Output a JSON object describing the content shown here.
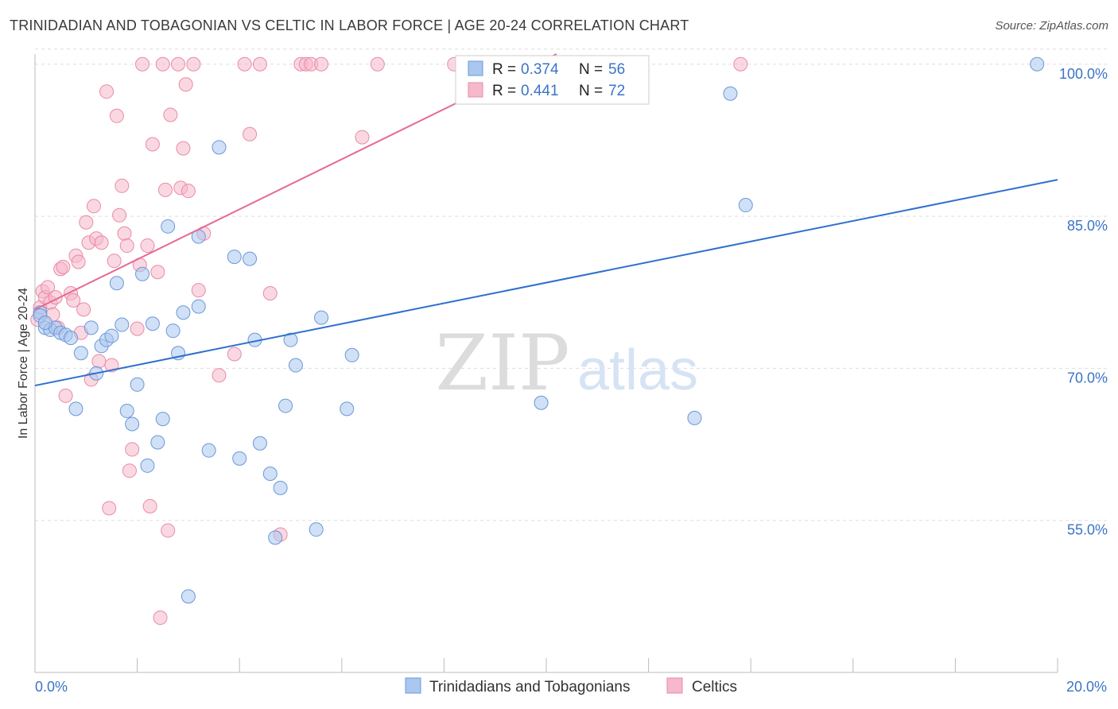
{
  "header": {
    "title": "TRINIDADIAN AND TOBAGONIAN VS CELTIC IN LABOR FORCE | AGE 20-24 CORRELATION CHART",
    "source": "Source: ZipAtlas.com"
  },
  "watermark": {
    "zip": "ZIP",
    "atlas": "atlas"
  },
  "legend_box": {
    "rows": [
      {
        "r_label": "R = ",
        "r_value": "0.374",
        "n_label": "N = ",
        "n_value": "56"
      },
      {
        "r_label": "R = ",
        "r_value": "0.441",
        "n_label": "N = ",
        "n_value": "72"
      }
    ]
  },
  "colors": {
    "series1_fill": "#a9c7ef",
    "series1_stroke": "#6b98d8",
    "series1_line": "#2f6fcf",
    "series2_fill": "#f6b8cb",
    "series2_stroke": "#e98aa8",
    "series2_line": "#e56a95",
    "grid": "#dddddd",
    "tick_label": "#3b73c8"
  },
  "chart_data": {
    "type": "scatter",
    "title": "TRINIDADIAN AND TOBAGONIAN VS CELTIC IN LABOR FORCE | AGE 20-24 CORRELATION CHART",
    "xlabel": "",
    "ylabel": "In Labor Force | Age 20-24",
    "xlim": [
      0,
      20
    ],
    "ylim": [
      40,
      101
    ],
    "x_tick_labels": [
      "0.0%",
      "20.0%"
    ],
    "y_ticks": [
      55,
      70,
      85,
      100
    ],
    "y_tick_labels": [
      "55.0%",
      "70.0%",
      "85.0%",
      "100.0%"
    ],
    "grid": true,
    "legend_position": "top-center",
    "series": [
      {
        "name": "Trinidadians and Tobagonians",
        "r": 0.374,
        "n": 56,
        "trend": {
          "x0": 0,
          "y0": 68.3,
          "x1": 20,
          "y1": 88.6
        },
        "points": [
          [
            0.1,
            75.5
          ],
          [
            0.2,
            74.0
          ],
          [
            0.3,
            73.8
          ],
          [
            0.4,
            74.0
          ],
          [
            0.5,
            73.5
          ],
          [
            0.6,
            73.3
          ],
          [
            0.7,
            73.0
          ],
          [
            0.8,
            66.0
          ],
          [
            0.9,
            71.5
          ],
          [
            1.1,
            74.0
          ],
          [
            1.2,
            69.5
          ],
          [
            1.3,
            72.2
          ],
          [
            1.4,
            72.8
          ],
          [
            1.5,
            73.2
          ],
          [
            1.6,
            78.4
          ],
          [
            1.7,
            74.3
          ],
          [
            1.8,
            65.8
          ],
          [
            1.9,
            64.5
          ],
          [
            2.0,
            68.4
          ],
          [
            2.1,
            79.3
          ],
          [
            2.2,
            60.4
          ],
          [
            2.3,
            74.4
          ],
          [
            2.4,
            62.7
          ],
          [
            2.5,
            65.0
          ],
          [
            2.6,
            84.0
          ],
          [
            2.7,
            73.7
          ],
          [
            2.8,
            71.5
          ],
          [
            2.9,
            75.5
          ],
          [
            3.0,
            47.5
          ],
          [
            3.2,
            76.1
          ],
          [
            3.2,
            83.0
          ],
          [
            3.4,
            61.9
          ],
          [
            3.6,
            91.8
          ],
          [
            3.9,
            81.0
          ],
          [
            4.0,
            61.1
          ],
          [
            4.2,
            80.8
          ],
          [
            4.3,
            72.8
          ],
          [
            4.4,
            62.6
          ],
          [
            4.6,
            59.6
          ],
          [
            4.7,
            53.3
          ],
          [
            4.8,
            58.2
          ],
          [
            4.9,
            66.3
          ],
          [
            5.0,
            72.8
          ],
          [
            5.1,
            70.3
          ],
          [
            5.5,
            54.1
          ],
          [
            5.6,
            75.0
          ],
          [
            6.1,
            66.0
          ],
          [
            6.2,
            71.3
          ],
          [
            9.9,
            66.6
          ],
          [
            12.9,
            65.1
          ],
          [
            13.6,
            97.1
          ],
          [
            13.9,
            86.1
          ],
          [
            11.3,
            100.0
          ],
          [
            19.6,
            100.0
          ],
          [
            0.1,
            75.2
          ],
          [
            0.2,
            74.5
          ]
        ]
      },
      {
        "name": "Celtics",
        "r": 0.441,
        "n": 72,
        "trend": {
          "x0": 0,
          "y0": 75.8,
          "x1": 10.2,
          "y1": 101.0
        },
        "points": [
          [
            0.1,
            76.0
          ],
          [
            0.15,
            77.6
          ],
          [
            0.2,
            77.0
          ],
          [
            0.25,
            78.0
          ],
          [
            0.3,
            76.5
          ],
          [
            0.4,
            77.0
          ],
          [
            0.45,
            74.0
          ],
          [
            0.5,
            79.8
          ],
          [
            0.55,
            80.0
          ],
          [
            0.6,
            67.3
          ],
          [
            0.7,
            77.4
          ],
          [
            0.75,
            76.7
          ],
          [
            0.8,
            81.1
          ],
          [
            0.85,
            80.5
          ],
          [
            0.9,
            73.5
          ],
          [
            0.95,
            75.8
          ],
          [
            1.0,
            84.4
          ],
          [
            1.05,
            82.4
          ],
          [
            1.1,
            68.9
          ],
          [
            1.15,
            86.0
          ],
          [
            1.2,
            82.8
          ],
          [
            1.25,
            70.7
          ],
          [
            1.3,
            82.4
          ],
          [
            1.4,
            97.3
          ],
          [
            1.45,
            56.2
          ],
          [
            1.5,
            70.3
          ],
          [
            1.55,
            80.6
          ],
          [
            1.6,
            94.9
          ],
          [
            1.65,
            85.1
          ],
          [
            1.7,
            88.0
          ],
          [
            1.75,
            83.3
          ],
          [
            1.8,
            82.1
          ],
          [
            1.85,
            59.9
          ],
          [
            1.9,
            62.0
          ],
          [
            2.0,
            73.9
          ],
          [
            2.05,
            80.2
          ],
          [
            2.1,
            100.0
          ],
          [
            2.2,
            82.1
          ],
          [
            2.25,
            56.4
          ],
          [
            2.3,
            92.1
          ],
          [
            2.4,
            79.5
          ],
          [
            2.45,
            45.4
          ],
          [
            2.5,
            100.0
          ],
          [
            2.55,
            87.6
          ],
          [
            2.6,
            54.0
          ],
          [
            2.65,
            95.0
          ],
          [
            2.8,
            100.0
          ],
          [
            2.85,
            87.8
          ],
          [
            2.9,
            91.7
          ],
          [
            2.95,
            98.0
          ],
          [
            3.0,
            87.5
          ],
          [
            3.1,
            100.0
          ],
          [
            3.2,
            77.7
          ],
          [
            3.3,
            83.3
          ],
          [
            3.6,
            69.3
          ],
          [
            3.9,
            71.4
          ],
          [
            4.1,
            100.0
          ],
          [
            4.2,
            93.1
          ],
          [
            4.4,
            100.0
          ],
          [
            4.6,
            77.4
          ],
          [
            4.8,
            53.6
          ],
          [
            5.2,
            100.0
          ],
          [
            5.3,
            100.0
          ],
          [
            5.4,
            100.0
          ],
          [
            5.6,
            100.0
          ],
          [
            6.4,
            92.8
          ],
          [
            6.7,
            100.0
          ],
          [
            8.2,
            100.0
          ],
          [
            10.2,
            100.0
          ],
          [
            13.8,
            100.0
          ],
          [
            0.05,
            74.8
          ],
          [
            0.35,
            75.3
          ]
        ]
      }
    ]
  }
}
